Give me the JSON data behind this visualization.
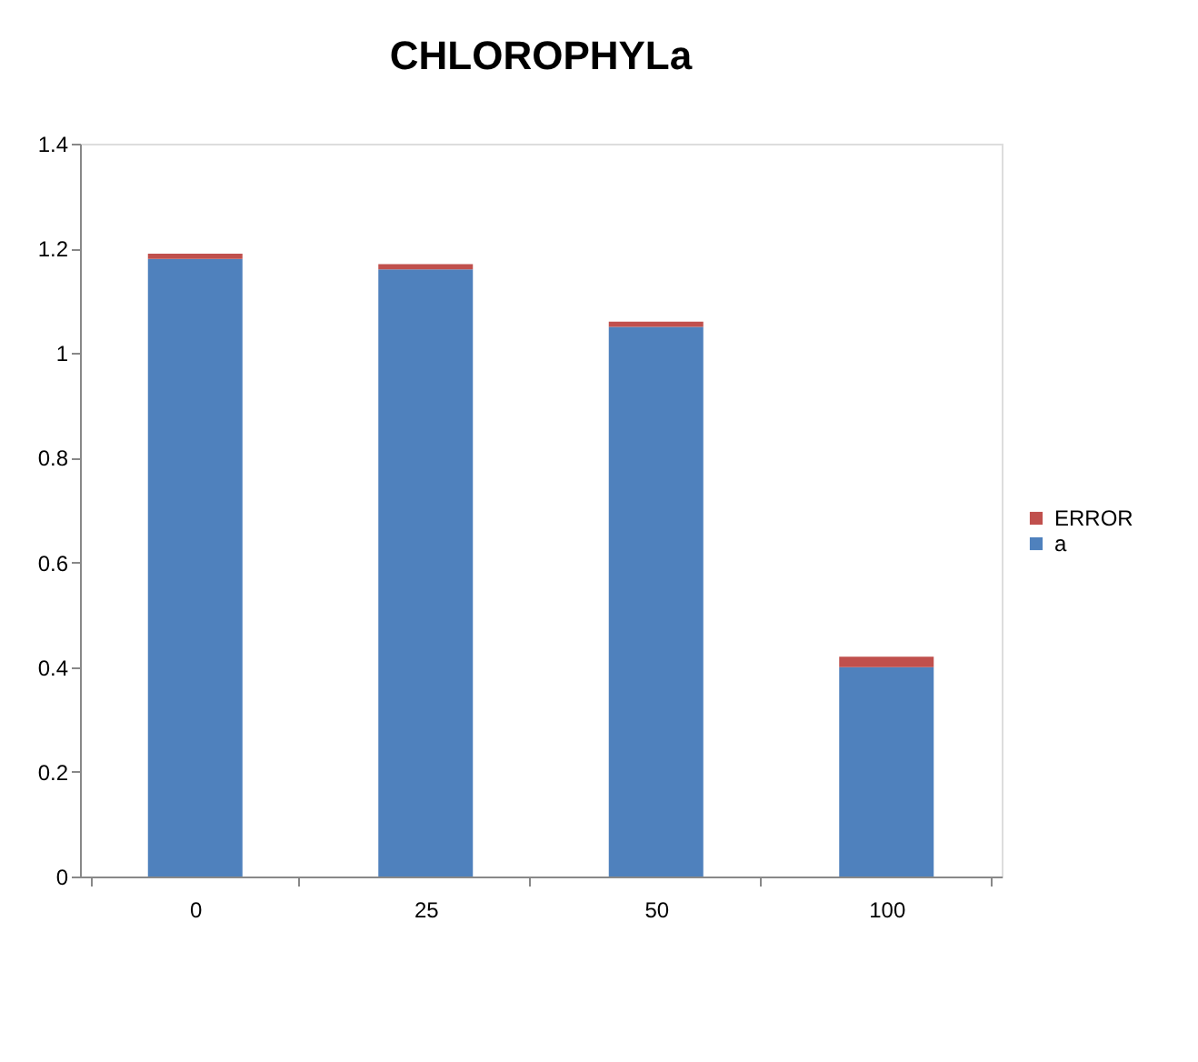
{
  "chart_data": {
    "type": "bar",
    "title": "CHLOROPHYLa",
    "categories": [
      "0",
      "25",
      "50",
      "100"
    ],
    "stacked": true,
    "series": [
      {
        "name": "a",
        "color": "#4f81bd",
        "values": [
          1.18,
          1.16,
          1.05,
          0.4
        ]
      },
      {
        "name": "ERROR",
        "color": "#c0504d",
        "values": [
          0.01,
          0.01,
          0.01,
          0.02
        ]
      }
    ],
    "ylim": [
      0,
      1.4
    ],
    "yticks": [
      0,
      0.2,
      0.4,
      0.6,
      0.8,
      1,
      1.2,
      1.4
    ],
    "grid": false,
    "legend": "right"
  }
}
